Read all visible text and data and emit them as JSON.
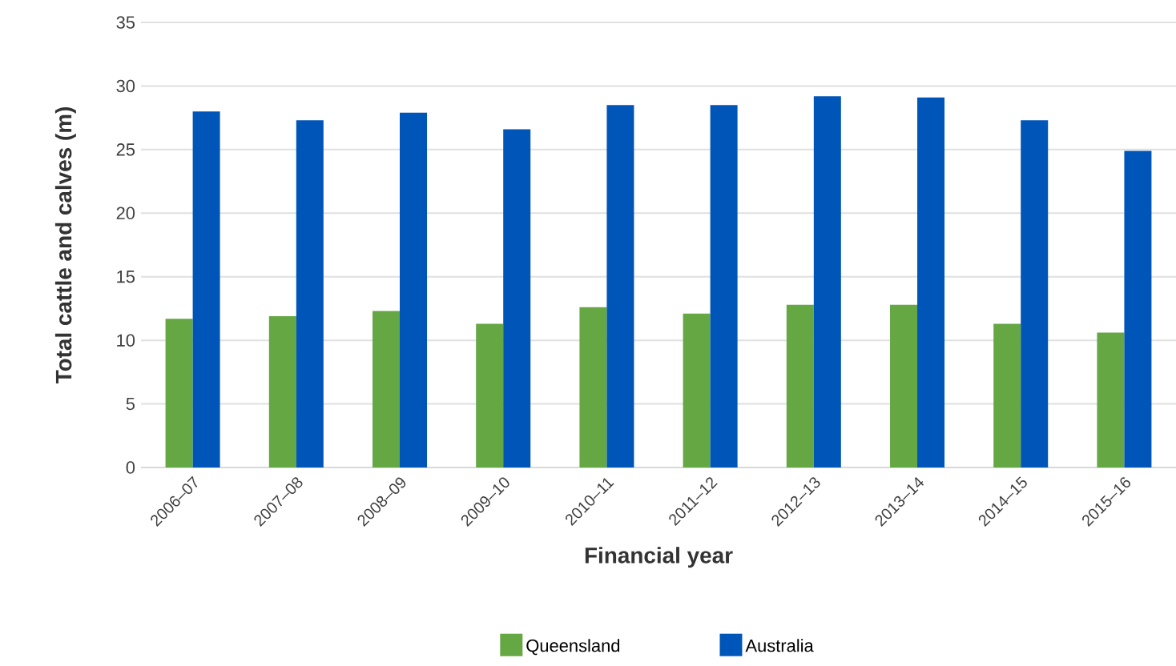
{
  "chart_data": {
    "type": "bar",
    "xlabel": "Financial year",
    "ylabel": "Total cattle and calves (m)",
    "categories": [
      "2006–07",
      "2007–08",
      "2008–09",
      "2009–10",
      "2010–11",
      "2011–12",
      "2012–13",
      "2013–14",
      "2014–15",
      "2015–16"
    ],
    "series": [
      {
        "name": "Queensland",
        "color": "#64a743",
        "values": [
          11.7,
          11.9,
          12.3,
          11.3,
          12.6,
          12.1,
          12.8,
          12.8,
          11.3,
          10.6
        ]
      },
      {
        "name": "Australia",
        "color": "#0055b8",
        "values": [
          28.0,
          27.3,
          27.9,
          26.6,
          28.5,
          28.5,
          29.2,
          29.1,
          27.3,
          24.9
        ]
      }
    ],
    "ylim": [
      0,
      35
    ],
    "yticks": [
      0,
      5,
      10,
      15,
      20,
      25,
      30,
      35
    ],
    "grid": "y",
    "legend": "bottom"
  }
}
